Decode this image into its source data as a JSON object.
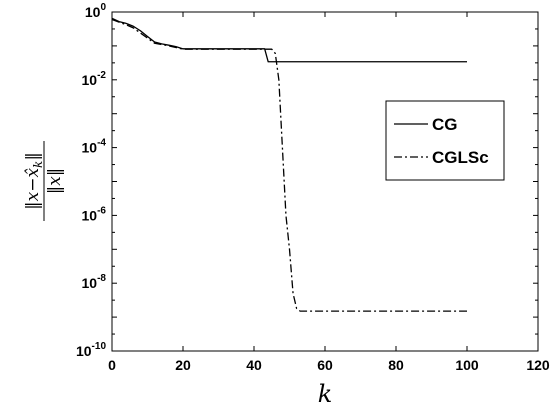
{
  "chart_data": {
    "type": "line",
    "title": "",
    "xlabel": "k",
    "ylabel": "‖x−x̂k‖ / ‖x‖",
    "ylabel_parts": {
      "num_prefix": "‖x−x̂",
      "num_sub": "k",
      "num_suffix": "‖",
      "den": "‖x‖"
    },
    "xlim": [
      0,
      120
    ],
    "ylim": [
      1e-10,
      1
    ],
    "yscale": "log",
    "grid": false,
    "legend_position": "right",
    "xticks": [
      0,
      20,
      40,
      60,
      80,
      100,
      120
    ],
    "xtick_labels": [
      "0",
      "20",
      "40",
      "60",
      "80",
      "100",
      "120"
    ],
    "yticks": [
      1,
      0.01,
      0.0001,
      1e-06,
      1e-08,
      1e-10
    ],
    "ytick_labels": [
      {
        "base": "10",
        "exp": "0"
      },
      {
        "base": "10",
        "exp": "-2"
      },
      {
        "base": "10",
        "exp": "-4"
      },
      {
        "base": "10",
        "exp": "-6"
      },
      {
        "base": "10",
        "exp": "-8"
      },
      {
        "base": "10",
        "exp": "-10"
      }
    ],
    "series": [
      {
        "name": "CG",
        "color": "#000000",
        "dash": "solid",
        "x": [
          0,
          2,
          4,
          6,
          8,
          10,
          12,
          14,
          16,
          18,
          20,
          25,
          30,
          35,
          40,
          43,
          44,
          45,
          50,
          60,
          70,
          80,
          90,
          100
        ],
        "y": [
          0.65,
          0.52,
          0.46,
          0.38,
          0.28,
          0.19,
          0.13,
          0.115,
          0.105,
          0.095,
          0.082,
          0.082,
          0.082,
          0.082,
          0.082,
          0.082,
          0.034,
          0.034,
          0.034,
          0.034,
          0.034,
          0.034,
          0.034,
          0.034
        ]
      },
      {
        "name": "CGLSc",
        "color": "#000000",
        "dash": "dashdot",
        "x": [
          0,
          2,
          4,
          6,
          8,
          10,
          12,
          14,
          16,
          18,
          20,
          25,
          30,
          35,
          40,
          45,
          46,
          47,
          48,
          49,
          50,
          51,
          52,
          53,
          55,
          60,
          70,
          80,
          90,
          100
        ],
        "y": [
          0.6,
          0.5,
          0.42,
          0.34,
          0.24,
          0.17,
          0.12,
          0.11,
          0.1,
          0.09,
          0.08,
          0.08,
          0.08,
          0.08,
          0.08,
          0.08,
          0.06,
          0.01,
          0.0001,
          1e-06,
          1e-07,
          5e-09,
          1.8e-09,
          1.5e-09,
          1.5e-09,
          1.5e-09,
          1.5e-09,
          1.5e-09,
          1.5e-09,
          1.5e-09
        ]
      }
    ]
  }
}
